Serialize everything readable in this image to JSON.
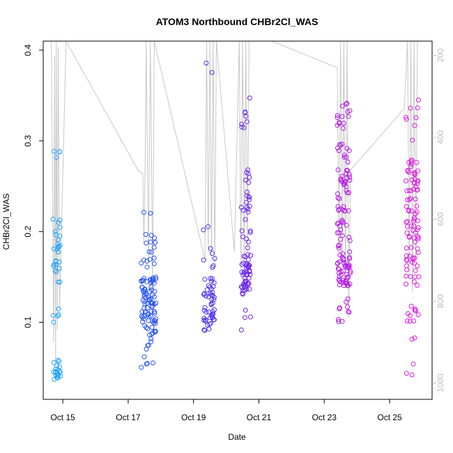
{
  "chart_data": {
    "type": "scatter",
    "title": "ATOM3 Northbound CHBr2Cl_WAS",
    "xlabel": "Date",
    "ylabel": "CHBr2Cl_WAS",
    "xlim": [
      14.4,
      26.3
    ],
    "ylim": [
      0.015,
      0.41
    ],
    "y2lim": [
      1040,
      165
    ],
    "x_ticks": [
      15,
      17,
      19,
      21,
      23,
      25
    ],
    "x_tick_labels": [
      "Oct 15",
      "Oct 17",
      "Oct 19",
      "Oct 21",
      "Oct 23",
      "Oct 25"
    ],
    "y_ticks": [
      0.1,
      0.2,
      0.3,
      0.4
    ],
    "y_tick_labels": [
      "0.1",
      "0.2",
      "0.3",
      "0.4"
    ],
    "y2_ticks": [
      200,
      400,
      600,
      800,
      1000
    ],
    "y2_tick_labels": [
      "200",
      "400",
      "600",
      "800",
      "1000"
    ],
    "y2_color": "#bfbfbf",
    "series_type": "points colored by date, open circles",
    "color_gradient": [
      "#1ea5ff",
      "#2a3cf0",
      "#9a14e8",
      "#e01ee0"
    ],
    "altitude_profile": [
      [
        14.65,
        165
      ],
      [
        14.72,
        900
      ],
      [
        14.75,
        200
      ],
      [
        14.78,
        950
      ],
      [
        14.8,
        165
      ],
      [
        14.83,
        870
      ],
      [
        14.86,
        180
      ],
      [
        14.9,
        820
      ],
      [
        15.1,
        165
      ],
      [
        17.3,
        480
      ],
      [
        17.45,
        490
      ],
      [
        17.48,
        660
      ],
      [
        17.52,
        460
      ],
      [
        17.55,
        165
      ],
      [
        17.62,
        700
      ],
      [
        17.68,
        165
      ],
      [
        17.75,
        760
      ],
      [
        17.8,
        165
      ],
      [
        19.35,
        700
      ],
      [
        19.4,
        165
      ],
      [
        19.45,
        680
      ],
      [
        19.5,
        165
      ],
      [
        19.55,
        700
      ],
      [
        19.6,
        165
      ],
      [
        19.65,
        720
      ],
      [
        19.7,
        165
      ],
      [
        20.25,
        680
      ],
      [
        20.4,
        165
      ],
      [
        20.45,
        720
      ],
      [
        20.5,
        165
      ],
      [
        20.55,
        700
      ],
      [
        20.6,
        165
      ],
      [
        20.65,
        680
      ],
      [
        20.7,
        165
      ],
      [
        21.4,
        165
      ],
      [
        23.4,
        230
      ],
      [
        23.45,
        680
      ],
      [
        23.5,
        165
      ],
      [
        23.55,
        720
      ],
      [
        23.6,
        165
      ],
      [
        23.65,
        760
      ],
      [
        23.7,
        165
      ],
      [
        23.75,
        840
      ],
      [
        23.8,
        480
      ],
      [
        25.45,
        330
      ],
      [
        25.55,
        165
      ],
      [
        25.6,
        740
      ],
      [
        25.65,
        165
      ],
      [
        25.7,
        780
      ],
      [
        25.75,
        165
      ],
      [
        25.8,
        700
      ],
      [
        25.85,
        165
      ]
    ],
    "groups": [
      {
        "x": [
          14.7,
          14.93
        ],
        "clusters": [
          [
            0.14,
            0.22,
            26
          ],
          [
            0.035,
            0.06,
            20
          ],
          [
            0.27,
            0.29,
            4
          ],
          [
            0.1,
            0.13,
            5
          ]
        ]
      },
      {
        "x": [
          17.4,
          17.85
        ],
        "clusters": [
          [
            0.1,
            0.15,
            70
          ],
          [
            0.05,
            0.1,
            22
          ],
          [
            0.16,
            0.2,
            16
          ],
          [
            0.22,
            0.23,
            2
          ]
        ]
      },
      {
        "x": [
          19.3,
          19.65
        ],
        "clusters": [
          [
            0.1,
            0.15,
            40
          ],
          [
            0.09,
            0.11,
            8
          ],
          [
            0.16,
            0.21,
            8
          ],
          [
            0.3,
            0.4,
            2
          ]
        ]
      },
      {
        "x": [
          20.45,
          20.75
        ],
        "clusters": [
          [
            0.13,
            0.17,
            45
          ],
          [
            0.17,
            0.27,
            30
          ],
          [
            0.3,
            0.35,
            8
          ],
          [
            0.08,
            0.12,
            4
          ]
        ]
      },
      {
        "x": [
          23.4,
          23.8
        ],
        "clusters": [
          [
            0.14,
            0.17,
            40
          ],
          [
            0.17,
            0.3,
            65
          ],
          [
            0.3,
            0.35,
            14
          ],
          [
            0.1,
            0.13,
            10
          ]
        ]
      },
      {
        "x": [
          25.5,
          25.9
        ],
        "clusters": [
          [
            0.14,
            0.19,
            25
          ],
          [
            0.19,
            0.28,
            60
          ],
          [
            0.3,
            0.35,
            8
          ],
          [
            0.08,
            0.12,
            12
          ],
          [
            0.04,
            0.06,
            3
          ]
        ]
      }
    ]
  }
}
